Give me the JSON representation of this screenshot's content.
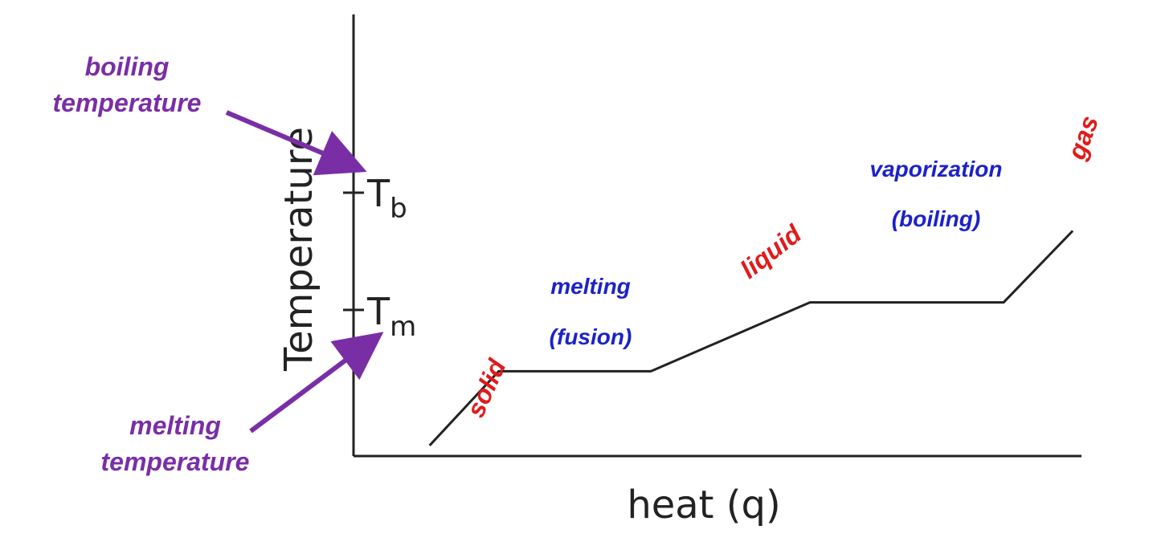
{
  "colors": {
    "curve": "#222222",
    "phase": "#e01b1b",
    "transition": "#1c22c8",
    "annotation": "#7a2ea6"
  },
  "chart_data": {
    "type": "line",
    "title": "",
    "xlabel": "heat (q)",
    "ylabel": "Temperature",
    "grid": false,
    "legend": "none",
    "y_ticks": [
      {
        "id": "tm",
        "main": "T",
        "sub": "m"
      },
      {
        "id": "tb",
        "main": "T",
        "sub": "b"
      }
    ],
    "series": [
      {
        "points": [
          [
            0.11,
            0.04
          ],
          [
            0.21,
            0.32
          ],
          [
            0.43,
            0.32
          ],
          [
            0.66,
            0.58
          ],
          [
            0.94,
            0.58
          ],
          [
            1.04,
            0.85
          ]
        ]
      }
    ],
    "segment_labels": [
      {
        "id": "solid",
        "text": "solid",
        "kind": "phase"
      },
      {
        "id": "melting",
        "text": "melting",
        "kind": "transition"
      },
      {
        "id": "fusion",
        "text": "(fusion)",
        "kind": "transition"
      },
      {
        "id": "liquid",
        "text": "liquid",
        "kind": "phase"
      },
      {
        "id": "vaporization",
        "text": "vaporization",
        "kind": "transition"
      },
      {
        "id": "boiling",
        "text": "(boiling)",
        "kind": "transition"
      },
      {
        "id": "gas",
        "text": "gas",
        "kind": "phase"
      }
    ],
    "annotations": [
      {
        "id": "boiling-temperature",
        "lines": [
          "boiling",
          "temperature"
        ],
        "points_to": "tb"
      },
      {
        "id": "melting-temperature",
        "lines": [
          "melting",
          "temperature"
        ],
        "points_to": "tm"
      }
    ]
  }
}
